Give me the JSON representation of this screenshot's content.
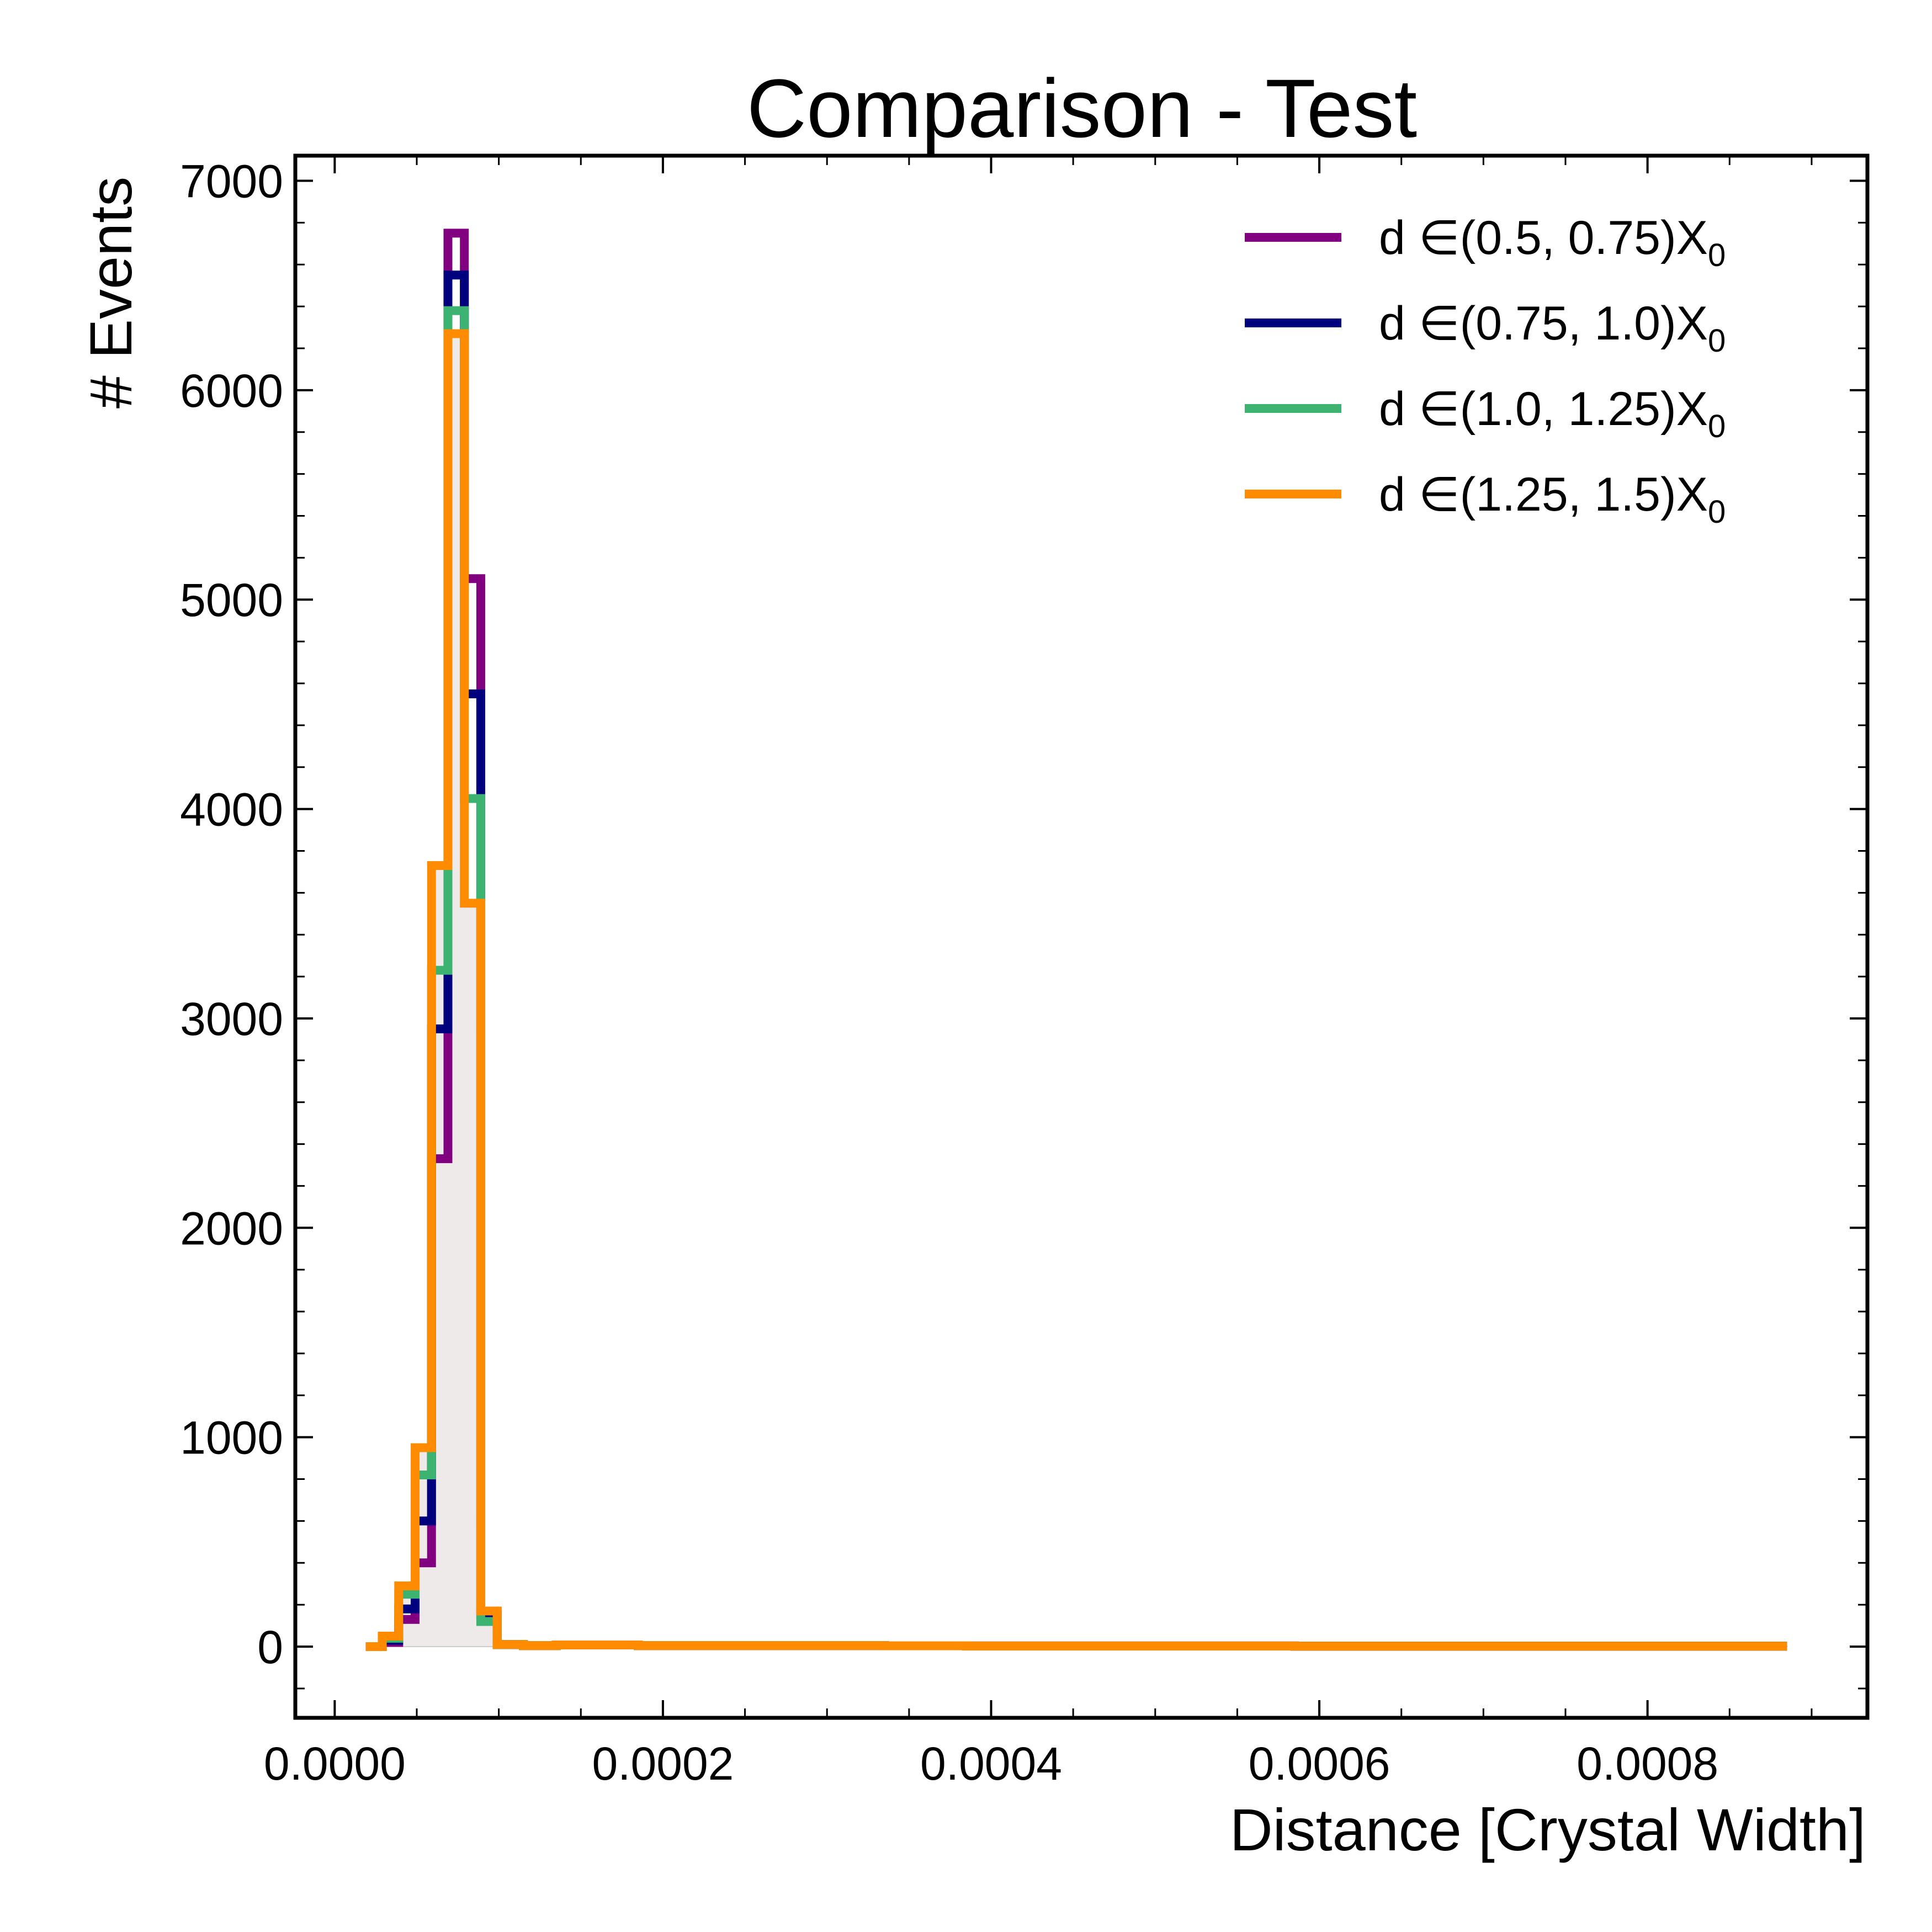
{
  "chart_data": {
    "type": "histogram",
    "title": "Comparison - Test",
    "xlabel": "Distance [Crystal Width]",
    "ylabel": "# Events",
    "xlim": [
      -2.4e-05,
      0.000934
    ],
    "ylim": [
      -340,
      7120
    ],
    "xticks": [
      0.0,
      0.0002,
      0.0004,
      0.0006,
      0.0008
    ],
    "xtick_labels": [
      "0.0000",
      "0.0002",
      "0.0004",
      "0.0006",
      "0.0008"
    ],
    "yticks": [
      0,
      1000,
      2000,
      3000,
      4000,
      5000,
      6000,
      7000
    ],
    "ytick_labels": [
      "0",
      "1000",
      "2000",
      "3000",
      "4000",
      "5000",
      "6000",
      "7000"
    ],
    "grid": false,
    "legend_position": "top-right",
    "filled_background_color": "#eeeaea",
    "bin_edges": [
      1.9e-05,
      2.9e-05,
      3.9e-05,
      4.9e-05,
      5.9e-05,
      6.9e-05,
      7.9e-05,
      8.9e-05,
      9.9e-05,
      0.000115,
      0.000135,
      0.000185,
      0.000235,
      0.000285,
      0.000335,
      0.000385,
      0.000435,
      0.000485,
      0.000535,
      0.000585,
      0.000635,
      0.000685,
      0.000735,
      0.000785,
      0.000835,
      0.000885
    ],
    "series": [
      {
        "name": "d ∈(0.5, 0.75)X",
        "name_subscript": "0",
        "color": "#800080",
        "values": [
          0,
          20,
          130,
          400,
          2330,
          6750,
          5100,
          170,
          10,
          5,
          8,
          5,
          5,
          5,
          4,
          3,
          3,
          3,
          3,
          2,
          2,
          2,
          2,
          2,
          2
        ]
      },
      {
        "name": "d ∈(0.75, 1.0)X",
        "name_subscript": "0",
        "color": "#00007e",
        "values": [
          0,
          30,
          180,
          600,
          2950,
          6550,
          4550,
          150,
          10,
          5,
          8,
          5,
          5,
          5,
          4,
          3,
          3,
          3,
          3,
          2,
          2,
          2,
          2,
          2,
          2
        ]
      },
      {
        "name": "d ∈(1.0, 1.25)X",
        "name_subscript": "0",
        "color": "#3cb371",
        "values": [
          0,
          40,
          250,
          820,
          3230,
          6380,
          4050,
          120,
          10,
          5,
          8,
          5,
          5,
          5,
          4,
          3,
          3,
          3,
          3,
          2,
          2,
          2,
          2,
          2,
          2
        ]
      },
      {
        "name": "d ∈(1.25, 1.5)X",
        "name_subscript": "0",
        "color": "#ff8c00",
        "values": [
          0,
          50,
          290,
          950,
          3730,
          6270,
          3550,
          170,
          10,
          5,
          8,
          5,
          5,
          5,
          4,
          3,
          3,
          3,
          3,
          2,
          2,
          2,
          2,
          2,
          2
        ]
      }
    ]
  }
}
